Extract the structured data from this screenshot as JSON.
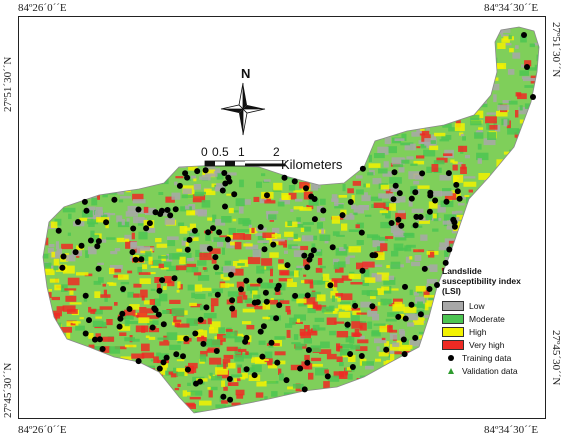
{
  "coordinates": {
    "top_left": "84º26´0´´E",
    "top_right": "84º34´30´´E",
    "bottom_left": "84º26´0´´E",
    "bottom_right": "84º34´30´´E",
    "left_top": "27º51´30´´N",
    "left_bottom": "27º45´30´´N",
    "right_top": "27º51´30´´N",
    "right_bottom": "27º45´30´´N"
  },
  "north_arrow": {
    "label": "N",
    "icon": "compass-rose-icon"
  },
  "scale_bar": {
    "ticks": [
      "0",
      "0.5",
      "1",
      "2"
    ],
    "unit": "Kilometers"
  },
  "legend": {
    "title": "Landslide susceptibility index (LSI)",
    "classes": [
      {
        "label": "Low",
        "color": "#a8a8a8"
      },
      {
        "label": "Moderate",
        "color": "#4cc552"
      },
      {
        "label": "High",
        "color": "#f2f200"
      },
      {
        "label": "Very high",
        "color": "#ee2a24"
      }
    ],
    "points": [
      {
        "label": "Training data",
        "symbol": "black-dot-icon",
        "color": "#000000"
      },
      {
        "label": "Validation data",
        "symbol": "green-triangle-icon",
        "color": "#2e9b2e"
      }
    ]
  }
}
